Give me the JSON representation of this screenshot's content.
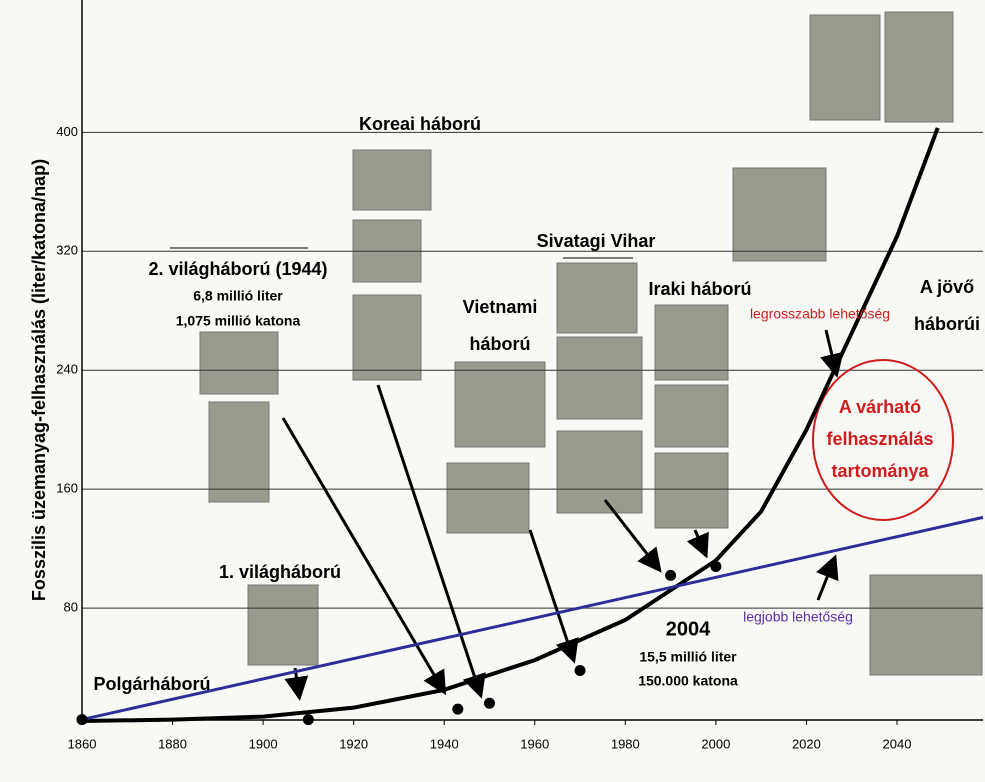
{
  "chart_data": {
    "type": "line",
    "y_label": "Fosszilis üzemanyag-felhasználás (liter/katona/nap)",
    "xlim": [
      1860,
      2059
    ],
    "ylim": [
      0,
      485
    ],
    "xticks": [
      1860,
      1880,
      1900,
      1920,
      1940,
      1960,
      1980,
      2000,
      2020,
      2040
    ],
    "yticks": [
      80,
      160,
      240,
      320,
      400
    ],
    "grid": true,
    "series": [
      {
        "name": "legrosszabb lehetőség",
        "color": "#000000",
        "kind": "line",
        "x": [
          1860,
          1880,
          1900,
          1920,
          1940,
          1960,
          1980,
          2000,
          2010,
          2020,
          2030,
          2040,
          2049
        ],
        "values": [
          4,
          5,
          7,
          13,
          25,
          45,
          72,
          112,
          145,
          200,
          265,
          330,
          403
        ]
      },
      {
        "name": "legjobb lehetőség",
        "color": "#2e2e9a",
        "kind": "line",
        "x": [
          1860,
          2059
        ],
        "values": [
          5,
          141
        ]
      },
      {
        "color": "#000000",
        "kind": "scatter",
        "x": [
          1860,
          1910,
          1943,
          1950,
          1970,
          1990,
          2000
        ],
        "values": [
          5,
          5,
          12,
          16,
          38,
          102,
          108
        ]
      }
    ],
    "annotations": [
      "Koreai háború",
      "2. világháború (1944)",
      "6,8 millió liter",
      "1,075 millió katona",
      "Sivatagi Vihar",
      "Vietnami",
      "háború",
      "Iraki háború",
      "A jövő",
      "háborúi",
      "A várható",
      "felhasználás",
      "tartománya",
      "1. világháború",
      "Polgárháború",
      "2004",
      "15,5 millió liter",
      "150.000 katona"
    ]
  }
}
